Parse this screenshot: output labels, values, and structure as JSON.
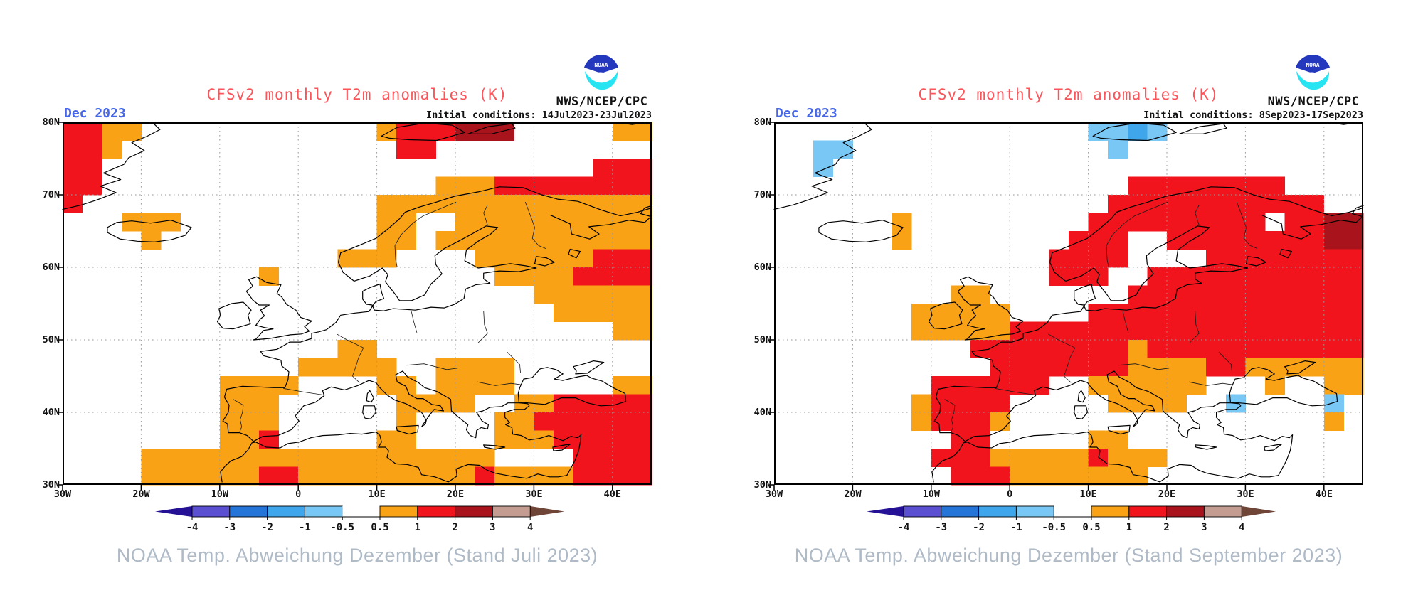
{
  "shared": {
    "title_label": "CFSv2 monthly T2m anomalies (K)",
    "date_label": "Dec 2023",
    "agency_label": "NWS/NCEP/CPC",
    "logo_text": "NOAA",
    "lat_ticks": [
      "80N",
      "70N",
      "60N",
      "50N",
      "40N",
      "30N"
    ],
    "lon_ticks": [
      "30W",
      "20W",
      "10W",
      "0",
      "10E",
      "20E",
      "30E",
      "40E"
    ],
    "colors": {
      "title": "#F9555A",
      "date": "#4767E8",
      "caption": "#AFBAC7",
      "grid_dots": "#9A9A9A",
      "coast": "#000000"
    },
    "colorbar": {
      "tick_labels": [
        "-4",
        "-3",
        "-2",
        "-1",
        "-0.5",
        "0.5",
        "1",
        "2",
        "3",
        "4"
      ],
      "segment_colors": [
        "#5B4FD2",
        "#2574D8",
        "#3FA6EC",
        "#79C7F5",
        "#FFFFFF",
        "#F9A215",
        "#F2141C",
        "#A9131B",
        "#C59C92"
      ],
      "left_arrow_color": "#241196",
      "right_arrow_color": "#6F4538"
    },
    "cell_categories": {
      "o": {
        "range_K": "0.5 to 1",
        "color": "#F9A215"
      },
      "r": {
        "range_K": "1 to 2",
        "color": "#F2141C"
      },
      "d": {
        "range_K": "2 to 3",
        "color": "#A9131B"
      },
      "l": {
        "range_K": "-1 to -0.5",
        "color": "#79C7F5"
      },
      "b": {
        "range_K": "-2 to -1",
        "color": "#3FA6EC"
      },
      ".": {
        "range_K": "-0.5 to 0.5",
        "color": "#FFFFFF"
      }
    }
  },
  "chart_data": {
    "type": "heatmap",
    "title": "CFSv2 monthly T2m anomalies (K)",
    "legend_position": "bottom",
    "scale_tick_labels": [
      "-4",
      "-3",
      "-2",
      "-1",
      "-0.5",
      "0.5",
      "1",
      "2",
      "3",
      "4"
    ],
    "lon_range": [
      -30,
      45
    ],
    "lat_range": [
      30,
      80
    ],
    "cell_size_deg": 2.5,
    "grid_legend": "rows top-to-bottom 80N..30N, cols left-to-right 30W..45E; o=+0.5..1K, r=+1..2K, d=+2..3K, l=-1..-0.5K, b=-2..-1K, .=neutral",
    "panels": [
      {
        "initial_conditions": "Initial conditions: 14Jul2023-23Jul2023",
        "caption": "NOAA Temp. Abweichung Dezember (Stand Juli 2023)",
        "grid_rows": [
          "rroo............orrrddd.....oo",
          "rro..............rr...........",
          "rr.........................rrr",
          "rr.................ooorrrrrrrr",
          "r...............oooooooooooooo",
          "...ooo..........oo..oooooooooo",
          "....o...........oo.ooooooooooo",
          "..............ooo....oooooorrr",
          "..........o...........oooorrrr",
          "........................oooooo",
          ".........................ooooo",
          "............................oo",
          "..............oo..............",
          "............ooooo..oooo.......",
          "........oooo....oo.oooo.....oo",
          "........ooo......oooo..oorrrrr",
          "........ooo......o....oorrrrrr",
          "........oor.....oo....ooorrrrr",
          "....oooooooooooooooooo....rrrr",
          "....oooooorroooooooooroooorrrr"
        ]
      },
      {
        "initial_conditions": "Initial conditions: 8Sep2023-17Sep2023",
        "caption": "NOAA Temp. Abweichung Dezember (Stand September 2023)",
        "grid_rows": [
          "................llbl..........",
          "..ll.............l............",
          "..l...........................",
          "..................rrrrrrrr....",
          ".................rrrrrrrrrrr..",
          "......o.........rrrrrrrrr.rrdd",
          "......o........rrr..rrrrrrrrdd",
          "..............rrrr....rrrrrrrr",
          "..............rrr..rrrrrrrrrrr",
          ".........oo.......rrrrrrrrrrrr",
          ".......ooooo....rrrrrrrrrrrrrr",
          ".......ooooorrrrrrrrrrrrrrrrrr",
          "..........rrrrrrrrorrrrrrrrrrr",
          "...........rrrrrrroooorroooooo",
          "........rrrrrr..oooooo...o..oo",
          ".......orrrr.....oooo..l....l.",
          ".......orrro................o.",
          ".........rr.....oo............",
          "........rrrooooorooo..........",
          ".........rrrooooooo..........."
        ]
      }
    ]
  }
}
